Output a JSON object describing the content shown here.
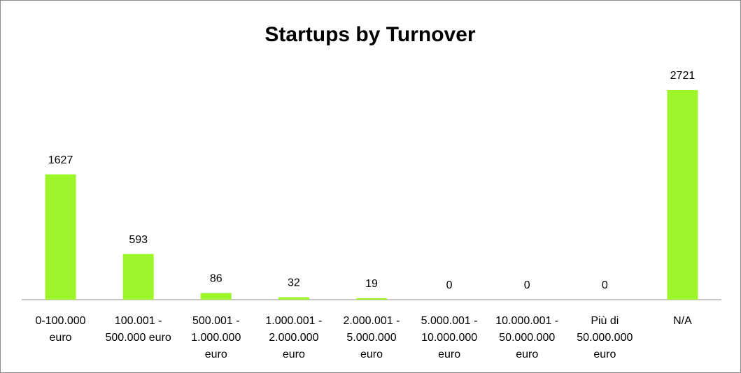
{
  "chart_data": {
    "type": "bar",
    "title": "Startups by Turnover",
    "categories": [
      "0-100.000 euro",
      "100.001 - 500.000 euro",
      "500.001 - 1.000.000 euro",
      "1.000.001 - 2.000.000 euro",
      "2.000.001 - 5.000.000 euro",
      "5.000.001 - 10.000.000 euro",
      "10.000.001 - 50.000.000 euro",
      "Più di 50.000.000 euro",
      "N/A"
    ],
    "values": [
      1627,
      593,
      86,
      32,
      19,
      0,
      0,
      0,
      2721
    ],
    "color": "#9ef52c"
  }
}
